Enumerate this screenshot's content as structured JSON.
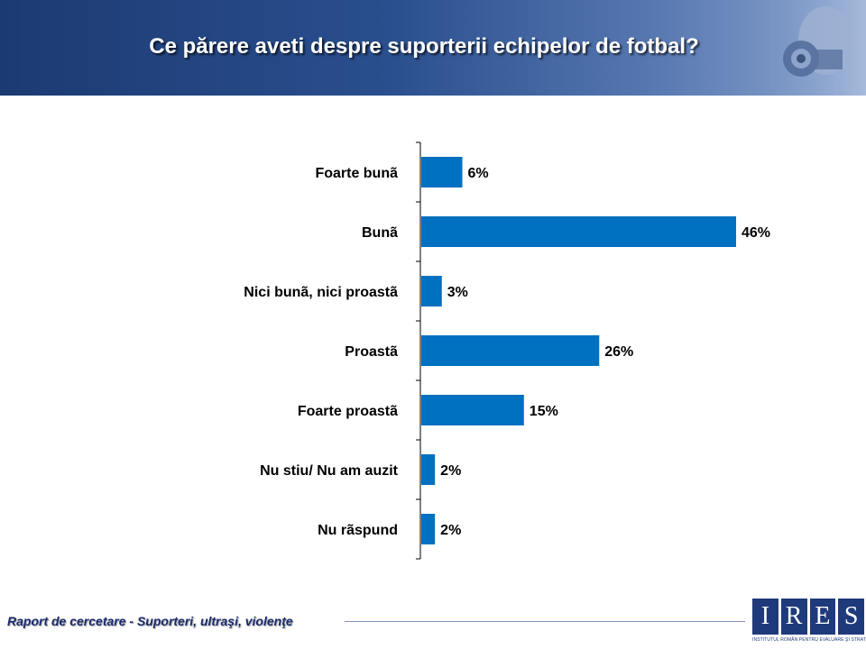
{
  "header": {
    "title": "Ce părere aveti despre suporterii echipelor de fotbal?"
  },
  "chart_data": {
    "type": "bar",
    "orientation": "horizontal",
    "categories": [
      "Foarte bunã",
      "Bunã",
      "Nici bunã, nici proastã",
      "Proastã",
      "Foarte proastã",
      "Nu stiu/ Nu am auzit",
      "Nu rãspund"
    ],
    "values": [
      6,
      46,
      3,
      26,
      15,
      2,
      2
    ],
    "value_suffix": "%",
    "bar_color": "#0070c0",
    "title": "",
    "xlabel": "",
    "ylabel": "",
    "xlim": [
      0,
      46
    ],
    "grid": false,
    "legend": "none"
  },
  "footer": {
    "text": "Raport de cercetare - Suporteri, ultraşi, violenţe"
  },
  "logo": {
    "letters": [
      "I",
      "R",
      "E",
      "S"
    ],
    "subtitle": "INSTITUTUL ROMÂN PENTRU EVALUARE ŞI STRATEGIE"
  }
}
